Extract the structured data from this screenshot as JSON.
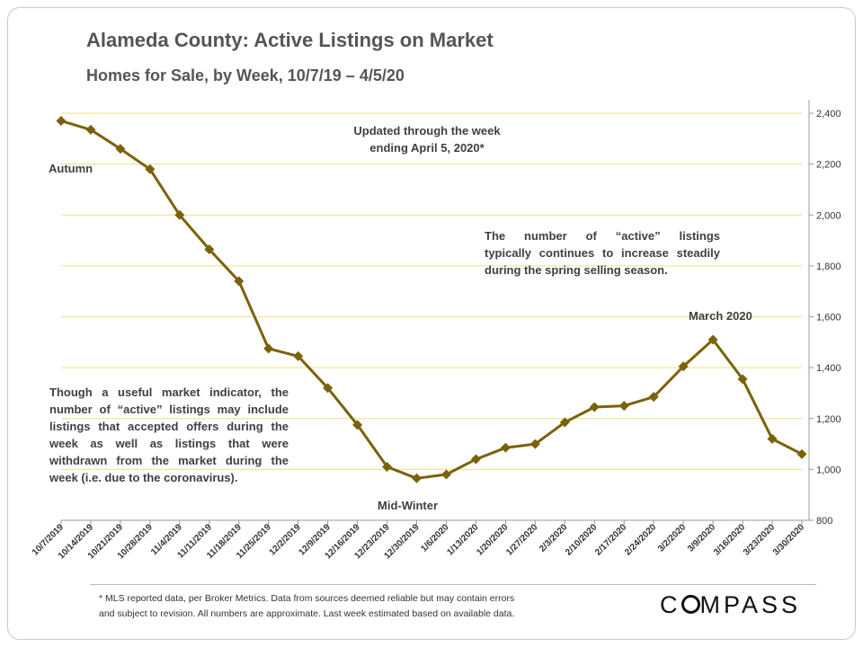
{
  "title": "Alameda County: Active Listings on Market",
  "subtitle": "Homes for Sale, by Week, 10/7/19 – 4/5/20",
  "annotations": {
    "updated": [
      "Updated through the week",
      "ending April 5, 2020*"
    ],
    "spring": [
      "The number of “active” listings",
      "typically continues to increase steadily",
      "during the spring selling season."
    ],
    "indicator": [
      "Though a useful market indicator, the",
      "number of “active” listings may include",
      "listings that accepted offers during the",
      "week as well as listings that were",
      "withdrawn from the market during the",
      "week (i.e. due to the coronavirus)."
    ],
    "autumn": "Autumn",
    "march": "March 2020",
    "midwinter": "Mid-Winter"
  },
  "footnote": [
    "* MLS reported data, per Broker Metrics. Data from sources deemed reliable but may contain errors",
    "and subject to revision. All numbers are approximate. Last week estimated based on available data."
  ],
  "logo": {
    "before": "C",
    "after": "MPASS"
  },
  "colors": {
    "line": "#7a6208",
    "marker": "#7a6208",
    "grid": "#f0e07a",
    "axis": "#999999"
  },
  "chart_data": {
    "type": "line",
    "categories": [
      "10/7/2019",
      "10/14/2019",
      "10/21/2019",
      "10/28/2019",
      "11/4/2019",
      "11/11/2019",
      "11/18/2019",
      "11/25/2019",
      "12/2/2019",
      "12/9/2019",
      "12/16/2019",
      "12/23/2019",
      "12/30/2019",
      "1/6/2020",
      "1/13/2020",
      "1/20/2020",
      "1/27/2020",
      "2/3/2020",
      "2/10/2020",
      "2/17/2020",
      "2/24/2020",
      "3/2/2020",
      "3/9/2020",
      "3/16/2020",
      "3/23/2020",
      "3/30/2020"
    ],
    "values": [
      2370,
      2335,
      2260,
      2180,
      2000,
      1865,
      1740,
      1475,
      1445,
      1320,
      1175,
      1010,
      965,
      980,
      1040,
      1085,
      1100,
      1185,
      1245,
      1250,
      1285,
      1405,
      1510,
      1355,
      1120,
      1060
    ],
    "ylim": [
      800,
      2400
    ],
    "yticks": [
      800,
      1000,
      1200,
      1400,
      1600,
      1800,
      2000,
      2200,
      2400
    ],
    "ytick_labels": [
      "800",
      "1,000",
      "1,200",
      "1,400",
      "1,600",
      "1,800",
      "2,000",
      "2,200",
      "2,400"
    ],
    "y_axis_side": "right",
    "grid": true,
    "legend": "none"
  }
}
